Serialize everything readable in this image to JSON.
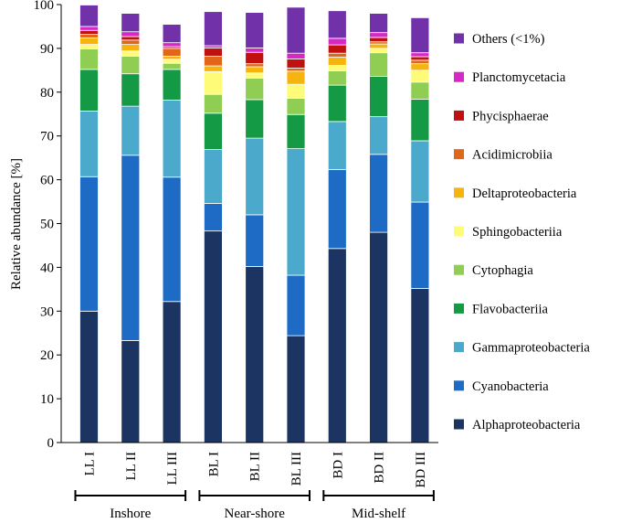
{
  "chart_data": {
    "type": "stacked-bar",
    "ylabel": "Relative abundance [%]",
    "ylim": [
      0,
      100
    ],
    "yticks": [
      0,
      10,
      20,
      30,
      40,
      50,
      60,
      70,
      80,
      90,
      100
    ],
    "categories": [
      "LL I",
      "LL II",
      "LL III",
      "BL I",
      "BL II",
      "BL III",
      "BD I",
      "BD II",
      "BD III"
    ],
    "groups": [
      {
        "label": "Inshore",
        "categories": [
          "LL I",
          "LL II",
          "LL III"
        ]
      },
      {
        "label": "Near-shore",
        "categories": [
          "BL I",
          "BL II",
          "BL III"
        ]
      },
      {
        "label": "Mid-shelf",
        "categories": [
          "BD I",
          "BD II",
          "BD III"
        ]
      }
    ],
    "series": [
      {
        "name": "Alphaproteobacteria",
        "color": "#1c3461",
        "values": [
          30,
          23.3,
          32.2,
          48.3,
          40.2,
          24.4,
          44.3,
          48,
          35.2
        ]
      },
      {
        "name": "Cyanobacteria",
        "color": "#1d6bc4",
        "values": [
          30.7,
          42.3,
          28.4,
          6.3,
          11.8,
          13.8,
          18,
          17.8,
          19.7
        ]
      },
      {
        "name": "Gammaproteobacteria",
        "color": "#4ba9cb",
        "values": [
          15,
          11.2,
          17.6,
          12.3,
          17.5,
          28.9,
          11,
          8.6,
          14
        ]
      },
      {
        "name": "Flavobacteriia",
        "color": "#149944",
        "values": [
          9.5,
          7.4,
          7,
          8.3,
          8.8,
          7.8,
          8.3,
          9.2,
          9.5
        ]
      },
      {
        "name": "Cytophagia",
        "color": "#8fce52",
        "values": [
          4.7,
          4,
          1.4,
          4.3,
          4.9,
          3.7,
          3.3,
          5.4,
          3.9
        ]
      },
      {
        "name": "Sphingobacteriia",
        "color": "#fdfb78",
        "values": [
          1,
          1.2,
          0.9,
          5.2,
          1.2,
          3.2,
          1.2,
          1,
          2.7
        ]
      },
      {
        "name": "Deltaproteobacteria",
        "color": "#f8b40e",
        "values": [
          1.5,
          1.5,
          0.7,
          1.3,
          1.4,
          3,
          1.9,
          1,
          1.5
        ]
      },
      {
        "name": "Acidimicrobiia",
        "color": "#e0671a",
        "values": [
          0.8,
          1,
          1.8,
          2.2,
          0.7,
          0.7,
          0.9,
          0.5,
          0.8
        ]
      },
      {
        "name": "Phycisphaerae",
        "color": "#c01010",
        "values": [
          0.9,
          0.8,
          0.4,
          1.9,
          2.6,
          2.1,
          1.9,
          1,
          0.8
        ]
      },
      {
        "name": "Planctomycetacia",
        "color": "#d727c5",
        "values": [
          0.9,
          1.1,
          0.9,
          0.5,
          1,
          1.3,
          1.5,
          1.1,
          0.9
        ]
      },
      {
        "name": "Others (<1%)",
        "color": "#7131a8",
        "values": [
          4.9,
          4.2,
          4.2,
          7.8,
          8.1,
          10.5,
          6.3,
          4.4,
          8
        ]
      }
    ]
  }
}
